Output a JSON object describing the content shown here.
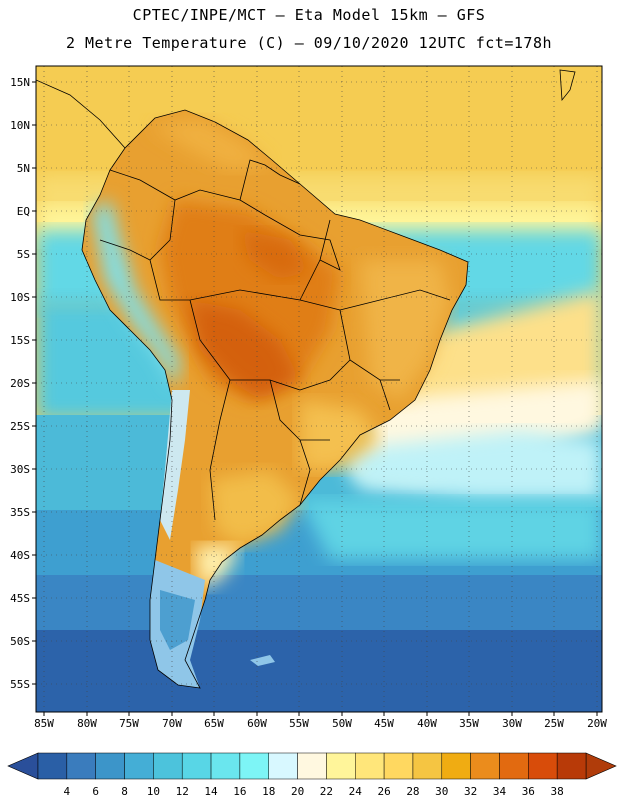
{
  "header": {
    "line1": "CPTEC/INPE/MCT –  Eta Model 15km – GFS",
    "line2": "2 Metre Temperature (C) – 09/10/2020 12UTC fct=178h"
  },
  "axes": {
    "lat_labels": [
      "15N",
      "10N",
      "5N",
      "EQ",
      "5S",
      "10S",
      "15S",
      "20S",
      "25S",
      "30S",
      "35S",
      "40S",
      "45S",
      "50S",
      "55S"
    ],
    "lon_labels": [
      "85W",
      "80W",
      "75W",
      "70W",
      "65W",
      "60W",
      "55W",
      "50W",
      "45W",
      "40W",
      "35W",
      "30W",
      "25W",
      "20W"
    ]
  },
  "colorbar": {
    "ticks": [
      "4",
      "6",
      "8",
      "10",
      "12",
      "14",
      "16",
      "18",
      "20",
      "22",
      "24",
      "26",
      "28",
      "30",
      "32",
      "34",
      "36",
      "38"
    ],
    "colors": [
      "#2a5fa6",
      "#3a7cbd",
      "#3c95c9",
      "#44aed6",
      "#4cc3dc",
      "#58d6e6",
      "#6ae6ee",
      "#7df5f6",
      "#d8f8ff",
      "#fff8e0",
      "#fff59a",
      "#ffe67a",
      "#ffd860",
      "#f5c542",
      "#f0ac12",
      "#eb8c1c",
      "#e26a10",
      "#d84c0a",
      "#b83a08"
    ],
    "low_arrow_color": "#2a4f9a",
    "high_arrow_color": "#b03c0a"
  }
}
